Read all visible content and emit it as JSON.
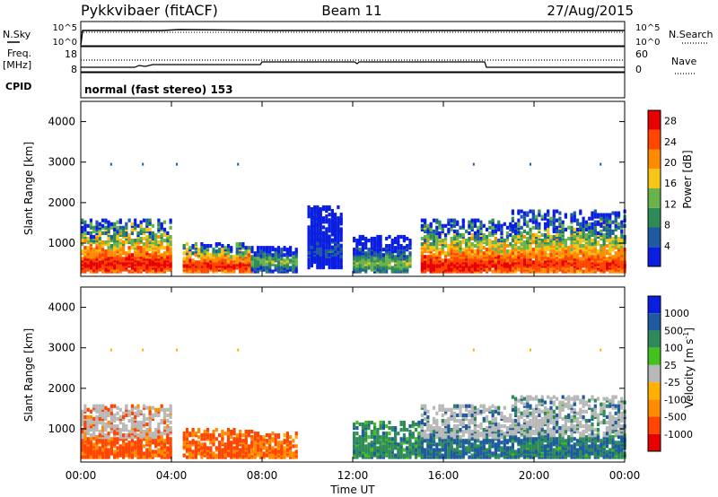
{
  "header": {
    "radar": "Pykkvibaer (fitACF)",
    "beam": "Beam 11",
    "date": "27/Aug/2015"
  },
  "top_panels": {
    "nsky_label": "N.Sky",
    "nsky_ticks": [
      "10^5",
      "10^0"
    ],
    "nsearch_label": "N.Search",
    "nsearch_ticks": [
      "10^5",
      "10^0"
    ],
    "freq_label": "Freq.",
    "freq_unit": "[MHz]",
    "freq_ticks": [
      "18",
      "8"
    ],
    "nave_label": "Nave",
    "nave_ticks": [
      "60",
      "0"
    ],
    "cpid_label": "CPID",
    "cpid_text": "normal (fast stereo) 153"
  },
  "colors": {
    "power": [
      "#0a1ee0",
      "#1e5aa0",
      "#2e8b57",
      "#69b34c",
      "#f5c518",
      "#ff8c00",
      "#ff4500",
      "#e60000"
    ],
    "velocity": [
      "#e60000",
      "#ff4500",
      "#ff8c00",
      "#ffb000",
      "#b8b8b8",
      "#44c21c",
      "#2e8b57",
      "#1e5aa0",
      "#0a1ee0"
    ],
    "gs": "#b8b8b8"
  },
  "chart_data": [
    {
      "type": "heatmap",
      "title": "",
      "xlabel": "",
      "ylabel": "Slant Range [km]",
      "xlim": [
        "00:00",
        "24:00"
      ],
      "ylim": [
        180,
        4500
      ],
      "x_ticks": [
        "00:00",
        "04:00",
        "08:00",
        "12:00",
        "16:00",
        "20:00",
        "00:00"
      ],
      "y_ticks": [
        "1000",
        "2000",
        "3000",
        "4000"
      ],
      "colorbar": {
        "label": "Power [dB]",
        "ticks": [
          "4",
          "8",
          "12",
          "16",
          "20",
          "24",
          "28"
        ],
        "range": [
          0,
          30
        ]
      },
      "scatter_regions": [
        {
          "time_range": [
            "00:00",
            "04:00"
          ],
          "range_km": [
            300,
            1600
          ],
          "core_km": 500,
          "peak_db": 28
        },
        {
          "time_range": [
            "04:30",
            "07:30"
          ],
          "range_km": [
            300,
            1000
          ],
          "core_km": 450,
          "peak_db": 28
        },
        {
          "time_range": [
            "07:30",
            "09:30"
          ],
          "range_km": [
            300,
            900
          ],
          "core_km": 550,
          "peak_db": 14
        },
        {
          "time_range": [
            "10:00",
            "11:30"
          ],
          "range_km": [
            400,
            1900
          ],
          "core_km": 800,
          "peak_db": 6
        },
        {
          "time_range": [
            "12:00",
            "14:30"
          ],
          "range_km": [
            300,
            1200
          ],
          "core_km": 500,
          "peak_db": 14
        },
        {
          "time_range": [
            "15:00",
            "19:00"
          ],
          "range_km": [
            300,
            1600
          ],
          "core_km": 450,
          "peak_db": 28
        },
        {
          "time_range": [
            "19:00",
            "24:00"
          ],
          "range_km": [
            300,
            1800
          ],
          "core_km": 500,
          "peak_db": 26
        }
      ]
    },
    {
      "type": "heatmap",
      "title": "",
      "xlabel": "Time UT",
      "ylabel": "Slant Range [km]",
      "xlim": [
        "00:00",
        "24:00"
      ],
      "ylim": [
        180,
        4500
      ],
      "x_ticks": [
        "00:00",
        "04:00",
        "08:00",
        "12:00",
        "16:00",
        "20:00",
        "00:00"
      ],
      "y_ticks": [
        "1000",
        "2000",
        "3000",
        "4000"
      ],
      "colorbar": {
        "label": "Velocity [m s^-1]",
        "unit_base": "Velocity [m s",
        "unit_exp": "-1",
        "unit_close": "]",
        "ticks": [
          "1000",
          "500",
          "100",
          "25",
          "-25",
          "-100",
          "-500",
          "-1000"
        ]
      },
      "scatter_regions": [
        {
          "time_range": [
            "00:00",
            "04:00"
          ],
          "range_km": [
            300,
            1600
          ],
          "velocity": -150,
          "ground_scatter": true
        },
        {
          "time_range": [
            "04:30",
            "07:30"
          ],
          "range_km": [
            300,
            1000
          ],
          "velocity": -150,
          "ground_scatter": false
        },
        {
          "time_range": [
            "07:30",
            "09:30"
          ],
          "range_km": [
            300,
            900
          ],
          "velocity": -100,
          "ground_scatter": false
        },
        {
          "time_range": [
            "12:00",
            "15:00"
          ],
          "range_km": [
            300,
            1200
          ],
          "velocity": 200,
          "ground_scatter": false
        },
        {
          "time_range": [
            "15:00",
            "19:00"
          ],
          "range_km": [
            300,
            1600
          ],
          "velocity": 400,
          "ground_scatter": true
        },
        {
          "time_range": [
            "19:00",
            "24:00"
          ],
          "range_km": [
            300,
            1800
          ],
          "velocity": 300,
          "ground_scatter": true
        }
      ]
    }
  ]
}
